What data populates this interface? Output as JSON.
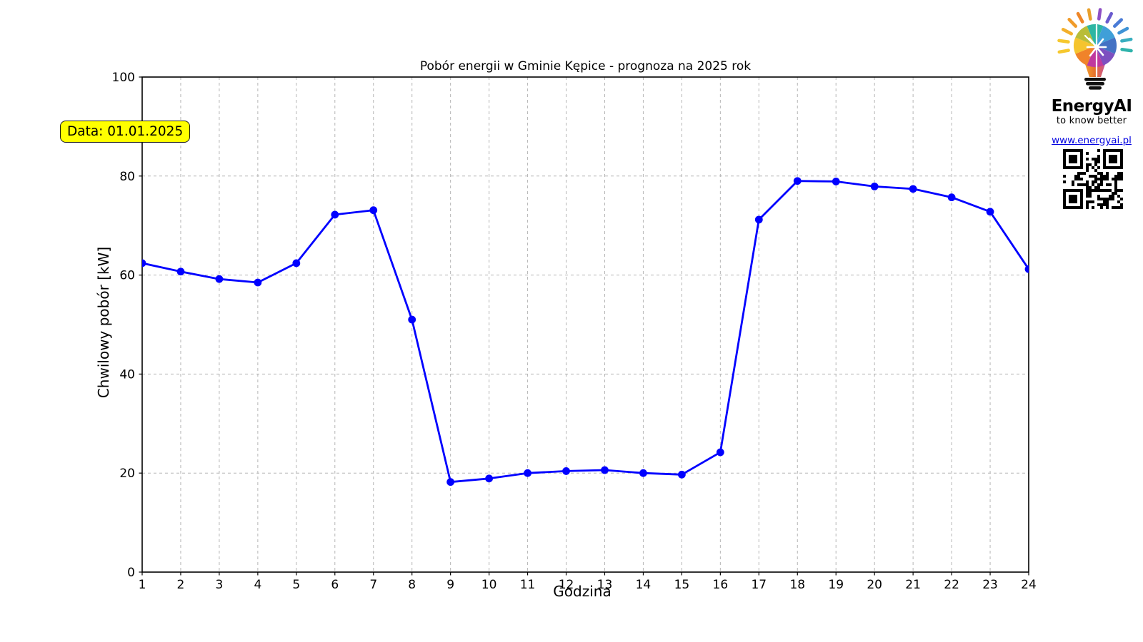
{
  "header": {
    "title": "Pobór energii w Gminie Kępice - prognoza na 2025 rok"
  },
  "annotation": {
    "label": "Data: 01.01.2025",
    "bg_color": "#ffff00"
  },
  "axes": {
    "xlabel": "Godzina",
    "ylabel": "Chwilowy pobór [kW]"
  },
  "branding": {
    "name": "EnergyAI",
    "tagline": "to know better",
    "url": "www.energyai.pl"
  },
  "chart_data": {
    "type": "line",
    "title": "Pobór energii w Gminie Kępice - prognoza na 2025 rok",
    "xlabel": "Godzina",
    "ylabel": "Chwilowy pobór [kW]",
    "x": [
      1,
      2,
      3,
      4,
      5,
      6,
      7,
      8,
      9,
      10,
      11,
      12,
      13,
      14,
      15,
      16,
      17,
      18,
      19,
      20,
      21,
      22,
      23,
      24
    ],
    "values": [
      62.4,
      60.7,
      59.2,
      58.5,
      62.4,
      72.2,
      73.1,
      51.0,
      18.2,
      18.9,
      20.0,
      20.4,
      20.6,
      20.0,
      19.7,
      24.2,
      71.2,
      79.0,
      78.9,
      77.9,
      77.4,
      75.7,
      72.8,
      61.2
    ],
    "xlim": [
      1,
      24
    ],
    "ylim": [
      0,
      100
    ],
    "xticks": [
      1,
      2,
      3,
      4,
      5,
      6,
      7,
      8,
      9,
      10,
      11,
      12,
      13,
      14,
      15,
      16,
      17,
      18,
      19,
      20,
      21,
      22,
      23,
      24
    ],
    "yticks": [
      0,
      20,
      40,
      60,
      80,
      100
    ],
    "grid": true,
    "grid_style": "dashed",
    "grid_color": "#b5b5b5",
    "line_color": "#0000ff",
    "marker": "o",
    "legend": null,
    "annotation_text": "Data: 01.01.2025"
  }
}
